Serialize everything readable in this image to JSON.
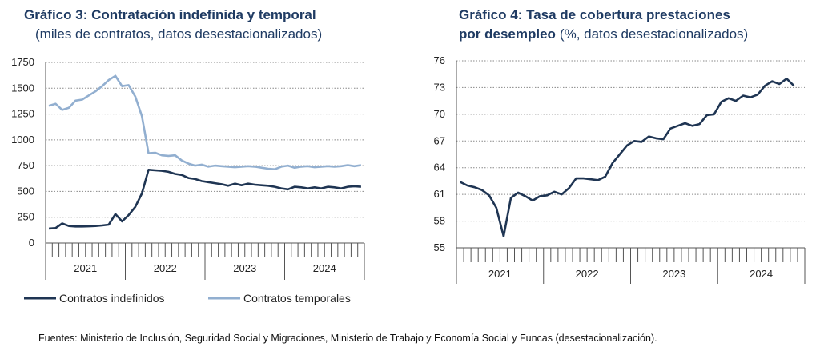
{
  "charts": [
    {
      "chart_data": {
        "type": "line",
        "title": "Gráfico 3: Contratación indefinida y temporal",
        "subtitle": "(miles de contratos, datos desestacionalizados)",
        "year_groups": [
          "2021",
          "2022",
          "2023",
          "2024"
        ],
        "ylim": [
          0,
          1750
        ],
        "yticks": [
          0,
          250,
          500,
          750,
          1000,
          1250,
          1500,
          1750
        ],
        "grid": true,
        "series": [
          {
            "name": "Contratos indefinidos",
            "color": "#1f3553",
            "values": [
              140,
              145,
              190,
              165,
              160,
              160,
              162,
              165,
              170,
              178,
              280,
              210,
              270,
              350,
              480,
              710,
              705,
              700,
              690,
              670,
              660,
              630,
              620,
              600,
              590,
              580,
              570,
              555,
              575,
              560,
              575,
              565,
              560,
              555,
              545,
              530,
              520,
              545,
              540,
              530,
              540,
              530,
              545,
              540,
              530,
              545,
              550,
              545
            ]
          },
          {
            "name": "Contratos temporales",
            "color": "#92afd0",
            "values": [
              1330,
              1350,
              1290,
              1310,
              1380,
              1390,
              1430,
              1470,
              1520,
              1580,
              1620,
              1520,
              1530,
              1420,
              1230,
              870,
              875,
              850,
              845,
              850,
              800,
              770,
              750,
              760,
              740,
              750,
              745,
              740,
              735,
              740,
              745,
              740,
              730,
              720,
              715,
              740,
              750,
              730,
              740,
              745,
              735,
              740,
              745,
              740,
              745,
              755,
              745,
              755
            ]
          }
        ]
      }
    },
    {
      "chart_data": {
        "type": "line",
        "title": [
          "Gráfico 4: Tasa de cobertura prestaciones",
          "por desempleo"
        ],
        "subtitle": "(%, datos desestacionalizados)",
        "year_groups": [
          "2021",
          "2022",
          "2023",
          "2024"
        ],
        "ylim": [
          55,
          76
        ],
        "yticks": [
          55,
          58,
          61,
          64,
          67,
          70,
          73,
          76
        ],
        "grid": true,
        "series": [
          {
            "color": "#1f3553",
            "values": [
              62.4,
              62.0,
              61.8,
              61.5,
              60.9,
              59.5,
              56.3,
              60.6,
              61.2,
              60.8,
              60.3,
              60.8,
              60.9,
              61.3,
              61.0,
              61.7,
              62.8,
              62.8,
              62.7,
              62.6,
              63.0,
              64.5,
              65.5,
              66.5,
              67.0,
              66.9,
              67.5,
              67.3,
              67.2,
              68.4,
              68.7,
              69.0,
              68.7,
              68.9,
              69.9,
              70.0,
              71.4,
              71.8,
              71.5,
              72.1,
              71.9,
              72.2,
              73.2,
              73.7,
              73.4,
              74.0,
              73.2
            ]
          }
        ]
      }
    }
  ],
  "source": "Fuentes: Ministerio de Inclusión, Seguridad Social y Migraciones, Ministerio de Trabajo y Economía Social y Funcas (desestacionalización)."
}
